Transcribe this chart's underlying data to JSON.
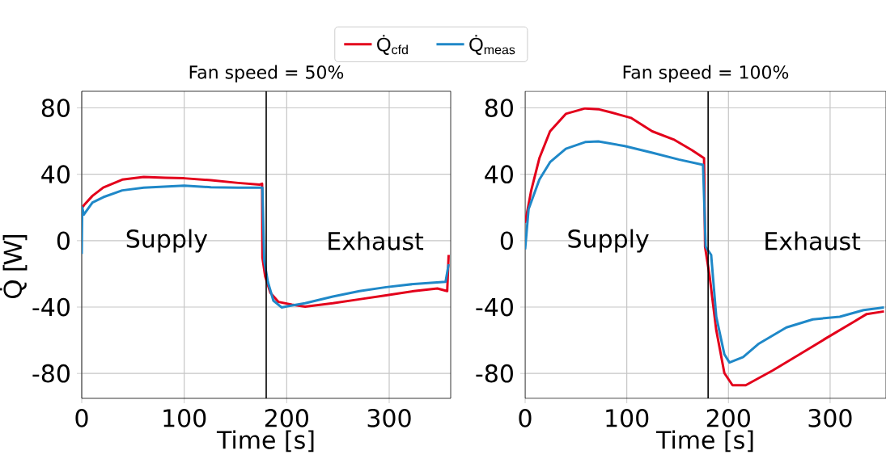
{
  "chart_data": [
    {
      "type": "line",
      "title": "Fan speed = 50%",
      "xlabel": "Time [s]",
      "ylabel": "Q̇ [W]",
      "xlim": [
        0,
        360
      ],
      "ylim": [
        -95,
        90
      ],
      "xticks": [
        0,
        100,
        200,
        300
      ],
      "yticks": [
        -80,
        -40,
        0,
        40,
        80
      ],
      "grid": true,
      "legend": "top",
      "line_style": "solid",
      "ref_lines": [
        {
          "axis": "x",
          "value": 180,
          "color": "#000000"
        }
      ],
      "annotations": [
        "Supply",
        "Exhaust"
      ],
      "series": [
        {
          "name": "Q̇$_{cfd}$",
          "color": "#e3001b",
          "x": [
            0,
            0.5,
            3,
            10.5,
            21,
            39.5,
            60.5,
            81.6,
            100,
            126,
            152.6,
            173.7,
            176,
            176.3,
            179,
            184,
            192,
            205,
            218,
            245,
            271,
            297,
            324,
            347,
            356.6,
            358
          ],
          "values": [
            18,
            20,
            22,
            27,
            32,
            36.8,
            38.4,
            37.9,
            37.6,
            36.4,
            34.8,
            33.8,
            34.3,
            -10.2,
            -21.5,
            -31.3,
            -36.9,
            -38.5,
            -39.7,
            -37.7,
            -35.3,
            -32.9,
            -30.4,
            -28.8,
            -30.4,
            -8.6
          ]
        },
        {
          "name": "Q̇$_{meas}$",
          "color": "#1f88c8",
          "x": [
            0,
            0.5,
            2,
            10.5,
            21,
            39.5,
            60.5,
            100,
            126,
            152.6,
            176.3,
            178,
            181.6,
            187,
            195,
            203,
            218,
            245,
            271,
            297,
            324,
            355,
            358
          ],
          "values": [
            -8,
            20,
            15.7,
            23,
            26.2,
            30.3,
            31.9,
            33.2,
            32.2,
            31.9,
            31.9,
            -11.8,
            -24.8,
            -36.1,
            -40.2,
            -39.3,
            -37.7,
            -33.7,
            -30.4,
            -28,
            -26.1,
            -24.8,
            -14.2
          ]
        }
      ]
    },
    {
      "type": "line",
      "title": "Fan speed = 100%",
      "xlabel": "Time [s]",
      "xlim": [
        0,
        355
      ],
      "ylim": [
        -95,
        90
      ],
      "xticks": [
        0,
        100,
        200,
        300
      ],
      "yticks": [
        -80,
        -40,
        0,
        40,
        80
      ],
      "grid": true,
      "line_style": "solid",
      "ref_lines": [
        {
          "axis": "x",
          "value": 180,
          "color": "#000000"
        }
      ],
      "annotations": [
        "Supply",
        "Exhaust"
      ],
      "series": [
        {
          "color": "#e3001b",
          "x": [
            0,
            6,
            14,
            24.5,
            40,
            59,
            72,
            85,
            104,
            125,
            146,
            164,
            176,
            177,
            181.5,
            188,
            196,
            204,
            217,
            243.5,
            270,
            296,
            323,
            336,
            353
          ],
          "values": [
            10.8,
            30.3,
            49.7,
            65.9,
            76.4,
            79.7,
            79.2,
            77.2,
            74,
            65.9,
            61,
            54.6,
            49.7,
            -3.7,
            -21.5,
            -53.9,
            -79.8,
            -87.1,
            -87.1,
            -78.2,
            -68.5,
            -58.8,
            -49,
            -44.2,
            -42.6
          ]
        },
        {
          "color": "#1f88c8",
          "x": [
            0,
            3.4,
            14,
            24.5,
            40,
            59,
            72,
            98,
            125,
            151,
            175,
            177.6,
            183,
            188,
            196,
            201,
            214.5,
            230,
            257,
            283,
            309.5,
            333,
            353
          ],
          "values": [
            -5.3,
            19,
            36.8,
            47.3,
            55.4,
            59.4,
            59.8,
            57,
            53,
            48.9,
            45.7,
            -3.7,
            -8.6,
            -45.8,
            -68.5,
            -73.4,
            -70.1,
            -62,
            -52.3,
            -47.4,
            -45.8,
            -41.8,
            -40.2
          ]
        }
      ]
    }
  ]
}
